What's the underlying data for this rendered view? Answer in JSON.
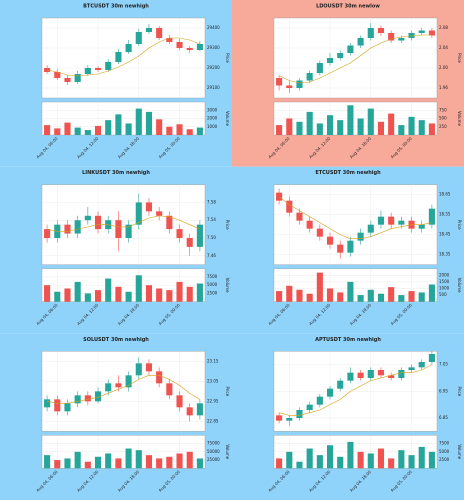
{
  "colors": {
    "up": "#26a69a",
    "down": "#ef5350",
    "ma": "#d4a017"
  },
  "chart_data": [
    {
      "type": "candlestick",
      "title": "BTCUSDT 30m newhigh",
      "background": "#8fd3fb",
      "ylabel": "Price",
      "volume_label": "Volume",
      "xticks": [
        {
          "value": 1,
          "label": "Aug 04, 06:00"
        },
        {
          "value": 5,
          "label": "Aug 04, 12:00"
        },
        {
          "value": 9,
          "label": "Aug 04, 18:00"
        },
        {
          "value": 13,
          "label": "Aug 05, 00:00"
        }
      ],
      "open": [
        29200,
        29180,
        29150,
        29130,
        29170,
        29200,
        29190,
        29230,
        29280,
        29320,
        29380,
        29400,
        29350,
        29330,
        29300,
        29290
      ],
      "high": [
        29215,
        29195,
        29165,
        29185,
        29215,
        29210,
        29245,
        29295,
        29340,
        29395,
        29420,
        29410,
        29365,
        29345,
        29310,
        29335
      ],
      "low": [
        29170,
        29140,
        29115,
        29120,
        29160,
        29180,
        29180,
        29220,
        29270,
        29310,
        29370,
        29340,
        29320,
        29290,
        29275,
        29285
      ],
      "close": [
        29180,
        29150,
        29130,
        29170,
        29200,
        29190,
        29230,
        29280,
        29320,
        29380,
        29400,
        29350,
        29330,
        29300,
        29290,
        29320
      ],
      "ma": [
        29190,
        29180,
        29165,
        29160,
        29165,
        29170,
        29185,
        29205,
        29230,
        29260,
        29300,
        29330,
        29350,
        29350,
        29340,
        29320
      ],
      "volume": [
        1200,
        800,
        1500,
        900,
        600,
        1100,
        1800,
        2500,
        1400,
        3200,
        2800,
        1900,
        1000,
        1300,
        700,
        900
      ],
      "ylim": [
        29050,
        29450
      ],
      "yticks": [
        29100,
        29200,
        29300,
        29400
      ],
      "vlim": [
        0,
        4000
      ],
      "vticks": [
        1000,
        2000,
        3000
      ]
    },
    {
      "type": "candlestick",
      "title": "LDOUSDT 30m newlow",
      "background": "#f7a99a",
      "ylabel": "Price",
      "volume_label": "Volume",
      "xticks": [
        {
          "value": 1,
          "label": "Aug 04, 06:00"
        },
        {
          "value": 5,
          "label": "Aug 04, 12:00"
        },
        {
          "value": 9,
          "label": "Aug 04, 18:00"
        },
        {
          "value": 13,
          "label": "Aug 05, 00:00"
        }
      ],
      "open": [
        1.98,
        1.965,
        1.96,
        1.975,
        1.99,
        2.01,
        2.02,
        2.03,
        2.045,
        2.06,
        2.08,
        2.07,
        2.055,
        2.06,
        2.07,
        2.075
      ],
      "high": [
        1.985,
        1.975,
        1.98,
        1.995,
        2.015,
        2.03,
        2.035,
        2.05,
        2.065,
        2.09,
        2.085,
        2.075,
        2.065,
        2.075,
        2.08,
        2.08
      ],
      "low": [
        1.955,
        1.95,
        1.955,
        1.97,
        1.985,
        2.005,
        2.015,
        2.025,
        2.04,
        2.055,
        2.065,
        2.05,
        2.05,
        2.055,
        2.065,
        2.06
      ],
      "close": [
        1.965,
        1.96,
        1.975,
        1.99,
        2.01,
        2.02,
        2.03,
        2.045,
        2.06,
        2.08,
        2.07,
        2.055,
        2.06,
        2.07,
        2.075,
        2.065
      ],
      "ma": [
        1.985,
        1.975,
        1.97,
        1.972,
        1.98,
        1.99,
        2.0,
        2.01,
        2.025,
        2.04,
        2.05,
        2.058,
        2.062,
        2.064,
        2.066,
        2.066
      ],
      "volume": [
        300,
        500,
        400,
        700,
        350,
        600,
        450,
        900,
        500,
        800,
        400,
        650,
        300,
        550,
        450,
        350
      ],
      "ylim": [
        1.94,
        2.1
      ],
      "yticks": [
        1.96,
        {
          "value": 2,
          "label": "2.00"
        },
        2.04,
        2.08
      ],
      "vlim": [
        0,
        1000
      ],
      "vticks": [
        250,
        500,
        750
      ]
    },
    {
      "type": "candlestick",
      "title": "LINKUSDT 30m newhigh",
      "background": "#8fd3fb",
      "ylabel": "Price",
      "volume_label": "Volume",
      "xticks": [
        {
          "value": 1,
          "label": "Aug 04, 06:00"
        },
        {
          "value": 5,
          "label": "Aug 04, 12:00"
        },
        {
          "value": 9,
          "label": "Aug 04, 18:00"
        },
        {
          "value": 13,
          "label": "Aug 05, 00:00"
        }
      ],
      "open": [
        7.52,
        7.5,
        7.53,
        7.51,
        7.54,
        7.55,
        7.52,
        7.54,
        7.5,
        7.53,
        7.58,
        7.56,
        7.55,
        7.52,
        7.5,
        7.48
      ],
      "high": [
        7.53,
        7.54,
        7.54,
        7.55,
        7.57,
        7.56,
        7.55,
        7.56,
        7.54,
        7.6,
        7.59,
        7.57,
        7.56,
        7.53,
        7.51,
        7.54
      ],
      "low": [
        7.49,
        7.49,
        7.5,
        7.5,
        7.53,
        7.51,
        7.51,
        7.47,
        7.49,
        7.52,
        7.55,
        7.54,
        7.51,
        7.49,
        7.46,
        7.47
      ],
      "close": [
        7.5,
        7.53,
        7.51,
        7.54,
        7.55,
        7.52,
        7.54,
        7.5,
        7.53,
        7.58,
        7.56,
        7.55,
        7.52,
        7.5,
        7.48,
        7.53
      ],
      "ma": [
        7.52,
        7.515,
        7.515,
        7.52,
        7.525,
        7.53,
        7.53,
        7.525,
        7.525,
        7.535,
        7.545,
        7.55,
        7.548,
        7.54,
        7.53,
        7.52
      ],
      "volume": [
        5000,
        3000,
        4000,
        6000,
        2500,
        3500,
        7000,
        4500,
        3000,
        8000,
        5000,
        4000,
        3500,
        6000,
        4500,
        5500
      ],
      "ylim": [
        7.44,
        7.62
      ],
      "yticks": [
        7.46,
        {
          "value": 7.5,
          "label": "7.50"
        },
        7.54,
        7.58
      ],
      "vlim": [
        0,
        10000
      ],
      "vticks": [
        2500,
        5000,
        7500
      ]
    },
    {
      "type": "candlestick",
      "title": "ETCUSDT 30m newhigh",
      "background": "#8fd3fb",
      "ylabel": "Price",
      "volume_label": "Volume",
      "xticks": [
        {
          "value": 1,
          "label": "Aug 04, 06:00"
        },
        {
          "value": 5,
          "label": "Aug 04, 12:00"
        },
        {
          "value": 9,
          "label": "Aug 04, 18:00"
        },
        {
          "value": 13,
          "label": "Aug 05, 00:00"
        }
      ],
      "open": [
        18.66,
        18.62,
        18.56,
        18.52,
        18.48,
        18.44,
        18.4,
        18.36,
        18.42,
        18.46,
        18.5,
        18.54,
        18.5,
        18.52,
        18.48,
        18.5
      ],
      "high": [
        18.68,
        18.64,
        18.58,
        18.54,
        18.5,
        18.46,
        18.42,
        18.44,
        18.48,
        18.52,
        18.57,
        18.56,
        18.54,
        18.54,
        18.52,
        18.6
      ],
      "low": [
        18.6,
        18.54,
        18.5,
        18.46,
        18.42,
        18.38,
        18.33,
        18.34,
        18.4,
        18.44,
        18.48,
        18.48,
        18.48,
        18.46,
        18.46,
        18.48
      ],
      "close": [
        18.62,
        18.56,
        18.52,
        18.48,
        18.44,
        18.4,
        18.36,
        18.42,
        18.46,
        18.5,
        18.54,
        18.5,
        18.52,
        18.48,
        18.5,
        18.58
      ],
      "ma": [
        18.64,
        18.6,
        18.57,
        18.54,
        18.51,
        18.48,
        18.45,
        18.43,
        18.43,
        18.44,
        18.46,
        18.48,
        18.49,
        18.5,
        18.5,
        18.51
      ],
      "volume": [
        800,
        1200,
        900,
        600,
        2200,
        1000,
        700,
        1500,
        500,
        900,
        600,
        1100,
        500,
        800,
        700,
        1300
      ],
      "ylim": [
        18.3,
        18.7
      ],
      "yticks": [
        18.35,
        18.45,
        18.55,
        18.65
      ],
      "vlim": [
        0,
        2500
      ],
      "vticks": [
        500,
        1000,
        1500,
        2000
      ]
    },
    {
      "type": "candlestick",
      "title": "SOLUSDT 30m newhigh",
      "background": "#8fd3fb",
      "ylabel": "Price",
      "volume_label": "Volume",
      "xticks": [
        {
          "value": 1,
          "label": "Aug 04, 06:00"
        },
        {
          "value": 5,
          "label": "Aug 04, 12:00"
        },
        {
          "value": 9,
          "label": "Aug 04, 18:00"
        },
        {
          "value": 13,
          "label": "Aug 05, 00:00"
        }
      ],
      "open": [
        22.92,
        22.96,
        22.9,
        22.94,
        22.98,
        22.95,
        23.0,
        23.04,
        23.02,
        23.08,
        23.14,
        23.1,
        23.04,
        22.98,
        22.92,
        22.88
      ],
      "high": [
        22.98,
        22.98,
        22.96,
        23.0,
        23.0,
        23.02,
        23.06,
        23.08,
        23.1,
        23.17,
        23.16,
        23.12,
        23.06,
        23.0,
        22.94,
        22.96
      ],
      "low": [
        22.9,
        22.88,
        22.88,
        22.92,
        22.93,
        22.94,
        22.98,
        23.0,
        23.0,
        23.06,
        23.08,
        23.02,
        22.96,
        22.9,
        22.85,
        22.86
      ],
      "close": [
        22.96,
        22.9,
        22.94,
        22.98,
        22.95,
        23.0,
        23.04,
        23.02,
        23.08,
        23.14,
        23.1,
        23.04,
        22.98,
        22.92,
        22.88,
        22.94
      ],
      "ma": [
        22.95,
        22.94,
        22.94,
        22.95,
        22.96,
        22.97,
        22.99,
        23.01,
        23.03,
        23.06,
        23.08,
        23.08,
        23.06,
        23.03,
        22.99,
        22.96
      ],
      "volume": [
        40000,
        25000,
        30000,
        50000,
        20000,
        35000,
        45000,
        30000,
        60000,
        55000,
        40000,
        30000,
        35000,
        45000,
        50000,
        30000
      ],
      "ylim": [
        22.8,
        23.2
      ],
      "yticks": [
        22.85,
        22.95,
        23.05,
        23.15
      ],
      "vlim": [
        0,
        100000
      ],
      "vticks": [
        25000,
        50000,
        75000
      ]
    },
    {
      "type": "candlestick",
      "title": "APTUSDT 30m newhigh",
      "background": "#8fd3fb",
      "ylabel": "Price",
      "volume_label": "Volume",
      "xticks": [
        {
          "value": 1,
          "label": "Aug 04, 06:00"
        },
        {
          "value": 5,
          "label": "Aug 04, 12:00"
        },
        {
          "value": 9,
          "label": "Aug 04, 18:00"
        },
        {
          "value": 13,
          "label": "Aug 05, 00:00"
        }
      ],
      "open": [
        6.86,
        6.84,
        6.85,
        6.88,
        6.9,
        6.93,
        6.96,
        6.99,
        7.02,
        7.0,
        7.03,
        7.01,
        7.0,
        7.03,
        7.04,
        7.06
      ],
      "high": [
        6.87,
        6.86,
        6.89,
        6.91,
        6.94,
        6.97,
        7.0,
        7.04,
        7.03,
        7.04,
        7.04,
        7.02,
        7.04,
        7.05,
        7.07,
        7.1
      ],
      "low": [
        6.83,
        6.82,
        6.84,
        6.87,
        6.89,
        6.92,
        6.95,
        6.98,
        6.99,
        6.99,
        7.0,
        6.99,
        6.99,
        7.02,
        7.03,
        7.05
      ],
      "close": [
        6.84,
        6.85,
        6.88,
        6.9,
        6.93,
        6.96,
        6.99,
        7.02,
        7.0,
        7.03,
        7.01,
        7.0,
        7.03,
        7.04,
        7.06,
        7.09
      ],
      "ma": [
        6.87,
        6.86,
        6.86,
        6.87,
        6.88,
        6.9,
        6.92,
        6.95,
        6.97,
        6.99,
        7.0,
        7.01,
        7.02,
        7.02,
        7.03,
        7.05
      ],
      "volume": [
        3000,
        5000,
        2000,
        6000,
        4000,
        7000,
        3500,
        8000,
        5000,
        4500,
        6000,
        3000,
        5500,
        4000,
        6500,
        5000
      ],
      "ylim": [
        6.8,
        7.1
      ],
      "yticks": [
        6.85,
        6.95,
        7.05
      ],
      "vlim": [
        0,
        10000
      ],
      "vticks": [
        2500,
        5000,
        7500
      ]
    }
  ]
}
